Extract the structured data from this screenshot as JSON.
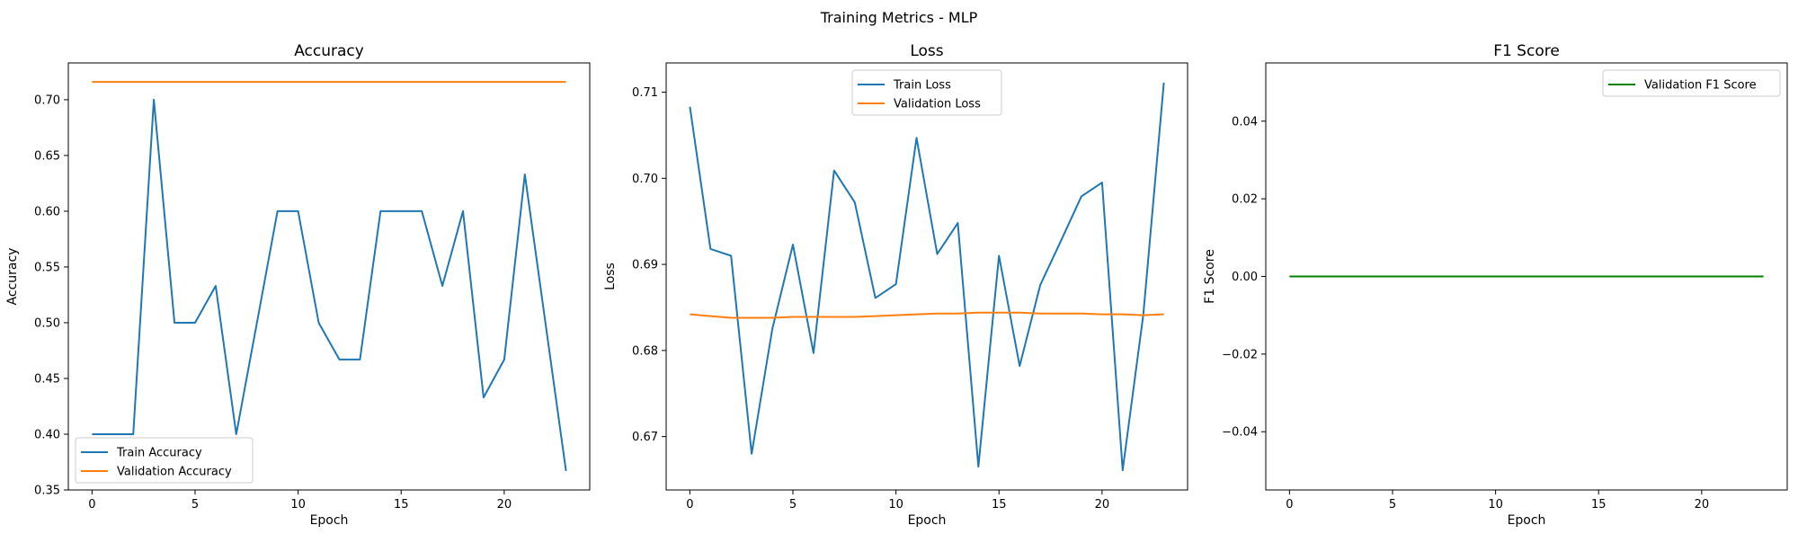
{
  "figure": {
    "suptitle": "Training Metrics - MLP"
  },
  "colors": {
    "train": "#1f77b4",
    "validation": "#ff7f0e",
    "f1": "#008000",
    "axes": "#000000"
  },
  "chart_data": [
    {
      "type": "line",
      "title": "Accuracy",
      "xlabel": "Epoch",
      "ylabel": "Accuracy",
      "xlim": [
        -1.15,
        24.15
      ],
      "ylim": [
        0.35,
        0.733
      ],
      "xticks": [
        0,
        5,
        10,
        15,
        20
      ],
      "yticks": [
        0.35,
        0.4,
        0.45,
        0.5,
        0.55,
        0.6,
        0.65,
        0.7
      ],
      "ytick_labels": [
        "0.35",
        "0.40",
        "0.45",
        "0.50",
        "0.55",
        "0.60",
        "0.65",
        "0.70"
      ],
      "legend": {
        "placement": "lower-left"
      },
      "grid": false,
      "series": [
        {
          "name": "Train Accuracy",
          "color": "#1f77b4",
          "x": [
            0,
            1,
            2,
            3,
            4,
            5,
            6,
            7,
            8,
            9,
            10,
            11,
            12,
            13,
            14,
            15,
            16,
            17,
            18,
            19,
            20,
            21,
            22,
            23
          ],
          "values": [
            0.4,
            0.4,
            0.4,
            0.7,
            0.5,
            0.5,
            0.533,
            0.4,
            0.5,
            0.6,
            0.6,
            0.5,
            0.467,
            0.467,
            0.6,
            0.6,
            0.6,
            0.533,
            0.6,
            0.433,
            0.467,
            0.633,
            0.5,
            0.367
          ]
        },
        {
          "name": "Validation Accuracy",
          "color": "#ff7f0e",
          "x": [
            0,
            1,
            2,
            3,
            4,
            5,
            6,
            7,
            8,
            9,
            10,
            11,
            12,
            13,
            14,
            15,
            16,
            17,
            18,
            19,
            20,
            21,
            22,
            23
          ],
          "values": [
            0.716,
            0.716,
            0.716,
            0.716,
            0.716,
            0.716,
            0.716,
            0.716,
            0.716,
            0.716,
            0.716,
            0.716,
            0.716,
            0.716,
            0.716,
            0.716,
            0.716,
            0.716,
            0.716,
            0.716,
            0.716,
            0.716,
            0.716,
            0.716
          ]
        }
      ]
    },
    {
      "type": "line",
      "title": "Loss",
      "xlabel": "Epoch",
      "ylabel": "Loss",
      "xlim": [
        -1.15,
        24.15
      ],
      "ylim": [
        0.6638,
        0.7134
      ],
      "xticks": [
        0,
        5,
        10,
        15,
        20
      ],
      "yticks": [
        0.67,
        0.68,
        0.69,
        0.7,
        0.71
      ],
      "ytick_labels": [
        "0.67",
        "0.68",
        "0.69",
        "0.70",
        "0.71"
      ],
      "legend": {
        "placement": "top-center"
      },
      "grid": false,
      "series": [
        {
          "name": "Train Loss",
          "color": "#1f77b4",
          "x": [
            0,
            1,
            2,
            3,
            4,
            5,
            6,
            7,
            8,
            9,
            10,
            11,
            12,
            13,
            14,
            15,
            16,
            17,
            18,
            19,
            20,
            21,
            22,
            23
          ],
          "values": [
            0.7083,
            0.6918,
            0.691,
            0.668,
            0.6825,
            0.6923,
            0.6797,
            0.7009,
            0.6972,
            0.6861,
            0.6877,
            0.7047,
            0.6912,
            0.6948,
            0.6665,
            0.691,
            0.6782,
            0.6876,
            0.6927,
            0.6979,
            0.6995,
            0.6661,
            0.6841,
            0.7111
          ]
        },
        {
          "name": "Validation Loss",
          "color": "#ff7f0e",
          "x": [
            0,
            1,
            2,
            3,
            4,
            5,
            6,
            7,
            8,
            9,
            10,
            11,
            12,
            13,
            14,
            15,
            16,
            17,
            18,
            19,
            20,
            21,
            22,
            23
          ],
          "values": [
            0.6842,
            0.684,
            0.6838,
            0.6838,
            0.6838,
            0.6839,
            0.6839,
            0.6839,
            0.6839,
            0.684,
            0.6841,
            0.6842,
            0.6843,
            0.6843,
            0.6844,
            0.6844,
            0.6844,
            0.6843,
            0.6843,
            0.6843,
            0.6842,
            0.6842,
            0.6841,
            0.6842
          ]
        }
      ]
    },
    {
      "type": "line",
      "title": "F1 Score",
      "xlabel": "Epoch",
      "ylabel": "F1 Score",
      "xlim": [
        -1.15,
        24.15
      ],
      "ylim": [
        -0.055,
        0.055
      ],
      "xticks": [
        0,
        5,
        10,
        15,
        20
      ],
      "yticks": [
        -0.04,
        -0.02,
        0.0,
        0.02,
        0.04
      ],
      "ytick_labels": [
        "−0.04",
        "−0.02",
        "0.00",
        "0.02",
        "0.04"
      ],
      "legend": {
        "placement": "top-right"
      },
      "grid": false,
      "series": [
        {
          "name": "Validation F1 Score",
          "color": "#008000",
          "x": [
            0,
            1,
            2,
            3,
            4,
            5,
            6,
            7,
            8,
            9,
            10,
            11,
            12,
            13,
            14,
            15,
            16,
            17,
            18,
            19,
            20,
            21,
            22,
            23
          ],
          "values": [
            0,
            0,
            0,
            0,
            0,
            0,
            0,
            0,
            0,
            0,
            0,
            0,
            0,
            0,
            0,
            0,
            0,
            0,
            0,
            0,
            0,
            0,
            0,
            0
          ]
        }
      ]
    }
  ]
}
